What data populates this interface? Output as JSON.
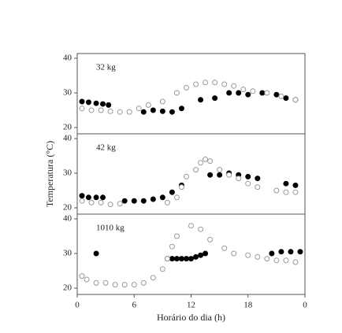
{
  "chart_data": [
    {
      "type": "scatter",
      "title": "32 kg",
      "xlim": [
        0,
        24
      ],
      "ylim": [
        20,
        40
      ],
      "yticks": [
        20,
        30,
        40
      ],
      "series": [
        {
          "color": "#000000",
          "x": [
            0.5,
            1.2,
            2,
            2.7,
            3.3,
            7,
            8,
            9,
            10,
            11,
            13,
            14.5,
            16,
            17,
            18,
            19.5,
            21,
            22,
            23
          ],
          "values": [
            27.5,
            27.3,
            27,
            26.8,
            26.5,
            24.5,
            25,
            24.7,
            24.5,
            25.5,
            28,
            28.5,
            30,
            30,
            29.5,
            30,
            29.5,
            28.5,
            28
          ]
        },
        {
          "color": "#ffffff",
          "x": [
            0.5,
            1.5,
            2.5,
            3.5,
            4.5,
            5.5,
            6.5,
            7.5,
            9,
            10.5,
            11.5,
            12.5,
            13.5,
            14.5,
            15.5,
            16.5,
            17.5,
            18.5,
            20,
            21.5,
            23
          ],
          "values": [
            25.5,
            25,
            25,
            24.7,
            24.5,
            24.5,
            25.5,
            26.5,
            27.5,
            30,
            31.5,
            32.5,
            33,
            33,
            32.5,
            32,
            31,
            30.5,
            30,
            29,
            28
          ]
        }
      ]
    },
    {
      "type": "scatter",
      "title": "42 kg",
      "ylabel": "Temperatura (°C)",
      "xlim": [
        0,
        24
      ],
      "ylim": [
        20,
        40
      ],
      "yticks": [
        20,
        30,
        40
      ],
      "series": [
        {
          "color": "#000000",
          "x": [
            0.5,
            1.2,
            2,
            2.7,
            5,
            6,
            7,
            8,
            9,
            10,
            11,
            14,
            15,
            16,
            17,
            18,
            19,
            22,
            23
          ],
          "values": [
            23.5,
            23,
            23,
            23,
            22,
            22,
            22,
            22.5,
            23,
            24.5,
            26.5,
            29.5,
            29.5,
            30,
            29.5,
            29,
            28.5,
            27,
            26.5
          ]
        },
        {
          "color": "#ffffff",
          "x": [
            0.5,
            1.5,
            2.5,
            3.5,
            4.5,
            9.5,
            10.5,
            11,
            11.5,
            12.5,
            13,
            13.5,
            14,
            15,
            16,
            17,
            18,
            19,
            21,
            22,
            23
          ],
          "values": [
            22,
            21.5,
            21.5,
            21,
            21.2,
            21.5,
            23,
            26,
            29,
            31,
            33,
            34,
            33.5,
            31,
            29.5,
            28.5,
            27,
            26,
            25,
            24.5,
            24.5
          ]
        }
      ]
    },
    {
      "type": "scatter",
      "title": "1010 kg",
      "xlabel": "Horário do dia (h)",
      "xlim": [
        0,
        24
      ],
      "ylim": [
        20,
        40
      ],
      "yticks": [
        20,
        30,
        40
      ],
      "xticks": [
        0,
        6,
        12,
        18,
        {
          "value": 24,
          "label": "0"
        }
      ],
      "series": [
        {
          "color": "#000000",
          "x": [
            2,
            9.5,
            10,
            10.5,
            11,
            11.5,
            12,
            12.5,
            13,
            13.5,
            20.5,
            21.5,
            22.5,
            23.5
          ],
          "values": [
            30,
            28.5,
            28.5,
            28.5,
            28.5,
            28.5,
            28.5,
            29,
            29.5,
            30,
            30,
            30.5,
            30.5,
            30.5
          ]
        },
        {
          "color": "#ffffff",
          "x": [
            0.5,
            1,
            2,
            3,
            4,
            5,
            6,
            7,
            8,
            9,
            9.5,
            10,
            10.5,
            12,
            13,
            14,
            15.5,
            16.5,
            18,
            19,
            20,
            21,
            22,
            23
          ],
          "values": [
            23.5,
            22.5,
            21.5,
            21.5,
            21,
            21,
            21,
            21.5,
            23,
            25.5,
            28.5,
            32,
            35,
            38,
            37,
            34,
            31.5,
            30,
            29.5,
            29,
            28.5,
            28,
            28,
            27.5
          ]
        }
      ]
    }
  ]
}
